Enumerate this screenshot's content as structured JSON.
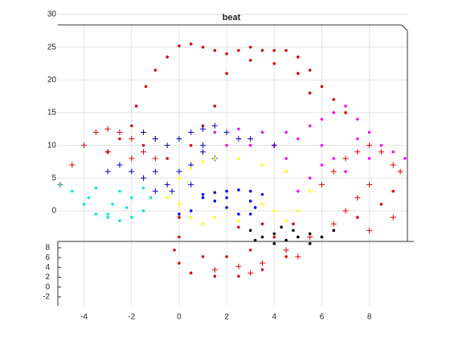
{
  "chart_data": {
    "type": "scatter3d",
    "title": "beat",
    "xlim": [
      -5.1,
      9.6
    ],
    "xticks": [
      -4,
      -2,
      0,
      2,
      4,
      6,
      8
    ],
    "zlim": [
      -13.9,
      30
    ],
    "zticks": [
      0,
      5,
      10,
      15,
      20,
      25,
      30
    ],
    "ylim": [
      -3,
      9.3
    ],
    "yticks": [
      -2,
      0,
      2,
      4,
      6,
      8
    ],
    "grid": true,
    "series": [
      {
        "color": "#e00000",
        "marker": "dot",
        "x": [
          -2,
          -1.8,
          -1.4,
          -1,
          -0.5,
          0,
          0.5,
          1,
          1.5,
          2,
          2.5,
          3,
          3.5,
          4,
          4.5,
          5,
          5.5,
          6,
          6.5,
          7,
          2,
          3,
          4,
          5,
          5.5,
          1.5,
          1,
          0.5,
          -0.5,
          -1.5,
          -2.5,
          -3,
          0,
          0,
          -0.2,
          0,
          0.5,
          1.5,
          2.5,
          3.5,
          4.5,
          5.5,
          6.5,
          7.5,
          8.5,
          9,
          1,
          2,
          3,
          4,
          4.8,
          3.5,
          2.5
        ],
        "values": [
          13,
          16,
          19,
          21.5,
          23.5,
          25.2,
          25.5,
          25,
          24.5,
          24,
          24.5,
          25,
          24.5,
          24.5,
          24.5,
          23.5,
          21.5,
          19,
          17,
          15,
          21,
          23,
          22.5,
          21,
          18,
          16,
          13,
          10,
          8,
          10,
          11,
          9,
          -1,
          -4,
          -6,
          -8,
          -9.5,
          -10,
          -10,
          -9,
          -7,
          -5,
          -3,
          -1,
          1,
          3,
          -7,
          -7,
          -6,
          -4,
          -2,
          -2,
          -2.5
        ]
      },
      {
        "color": "#e00000",
        "marker": "plus",
        "x": [
          -5,
          -4.5,
          -4,
          -3.5,
          -3,
          -2.5,
          -2,
          -1.5,
          -1,
          -3,
          -2,
          -1,
          6,
          6.5,
          7,
          7.5,
          8,
          8.5,
          9,
          9.3,
          8,
          7.5,
          7,
          6.5,
          5.5,
          4.5,
          3.5,
          2.5,
          1.5,
          3,
          5,
          8,
          9
        ],
        "values": [
          4,
          7,
          10,
          12,
          12.5,
          12,
          11,
          9,
          8,
          9,
          8,
          11,
          4,
          6,
          8,
          9,
          10,
          9,
          7,
          6,
          4,
          2,
          0,
          -2,
          -4,
          -6,
          -8,
          -8.5,
          -9,
          -9.5,
          -7,
          -3,
          -1
        ]
      },
      {
        "color": "#ff00ff",
        "marker": "dot",
        "x": [
          1.5,
          2.5,
          3.5,
          4.5,
          5,
          5.5,
          6,
          6.5,
          7,
          7.5,
          8,
          8.5,
          9,
          9.5,
          6,
          6.5,
          7,
          6,
          5.5,
          5,
          7.5,
          8,
          4,
          4.5,
          3,
          2
        ],
        "values": [
          12,
          12.5,
          12,
          12,
          11,
          13,
          14,
          15,
          16,
          14,
          12,
          10,
          9,
          8,
          10,
          8,
          6,
          7,
          5,
          3,
          11,
          8,
          10,
          8,
          10,
          10
        ]
      },
      {
        "color": "#0000cc",
        "marker": "plus",
        "x": [
          -1.5,
          -1,
          -0.5,
          0,
          0.5,
          1,
          1.5,
          2,
          2.5,
          3,
          4,
          -2,
          -1.5,
          -1,
          -0.5,
          0,
          0.5,
          1,
          1.5,
          -1,
          -0.3,
          -2.5,
          -3,
          0.5,
          1
        ],
        "values": [
          12,
          11,
          10,
          11,
          12,
          12.5,
          13,
          12,
          11,
          11,
          10,
          6,
          5,
          6,
          4,
          6,
          7,
          9,
          8,
          3,
          3,
          7,
          6,
          4,
          10
        ]
      },
      {
        "color": "#0000ff",
        "marker": "dot",
        "x": [
          1,
          1.5,
          2,
          2.5,
          3,
          3.5,
          1.5,
          2,
          2.5,
          3,
          3.2,
          0.5,
          0,
          1,
          2,
          3
        ],
        "values": [
          2.5,
          2.8,
          3,
          3.2,
          3,
          2.5,
          1.5,
          0.5,
          -0.5,
          -0.5,
          0.5,
          0,
          -0.5,
          2,
          2,
          1.5
        ]
      },
      {
        "color": "#ffff00",
        "marker": "dot",
        "x": [
          -0.5,
          0,
          0.5,
          1,
          0,
          0.5,
          1,
          1.5,
          2.5,
          3.5,
          4.5,
          5.5,
          5,
          4.5,
          4,
          3.5,
          2.5,
          1.5
        ],
        "values": [
          2,
          1,
          -1,
          -2,
          5,
          6.5,
          7.5,
          8,
          8,
          7,
          6,
          3,
          0,
          -1.5,
          0,
          1,
          -1.5,
          -1
        ]
      },
      {
        "color": "#00e5e5",
        "marker": "dot",
        "x": [
          -5,
          -4.5,
          -4,
          -3.5,
          -3,
          -2.5,
          -2,
          -1.5,
          -1.2,
          -1.5,
          -2.5,
          -3.5,
          -3.8,
          -2.8,
          -2,
          -3,
          -2.2
        ],
        "values": [
          4,
          3,
          1,
          -0.5,
          -1,
          -1.5,
          -1,
          0,
          2,
          3.5,
          3,
          3.5,
          2,
          1,
          2,
          -0.5,
          0.5
        ]
      },
      {
        "color": "#000000",
        "marker": "dot",
        "x": [
          3,
          3.5,
          4,
          4.5,
          5,
          5.5,
          6,
          6.5,
          3.2,
          4,
          4.8,
          5.5,
          4.3
        ],
        "values": [
          -3,
          -4,
          -3.5,
          -4.5,
          -4,
          -5,
          -4,
          -3,
          -4.5,
          -5,
          -3,
          -3.5,
          -2.5
        ]
      }
    ]
  }
}
